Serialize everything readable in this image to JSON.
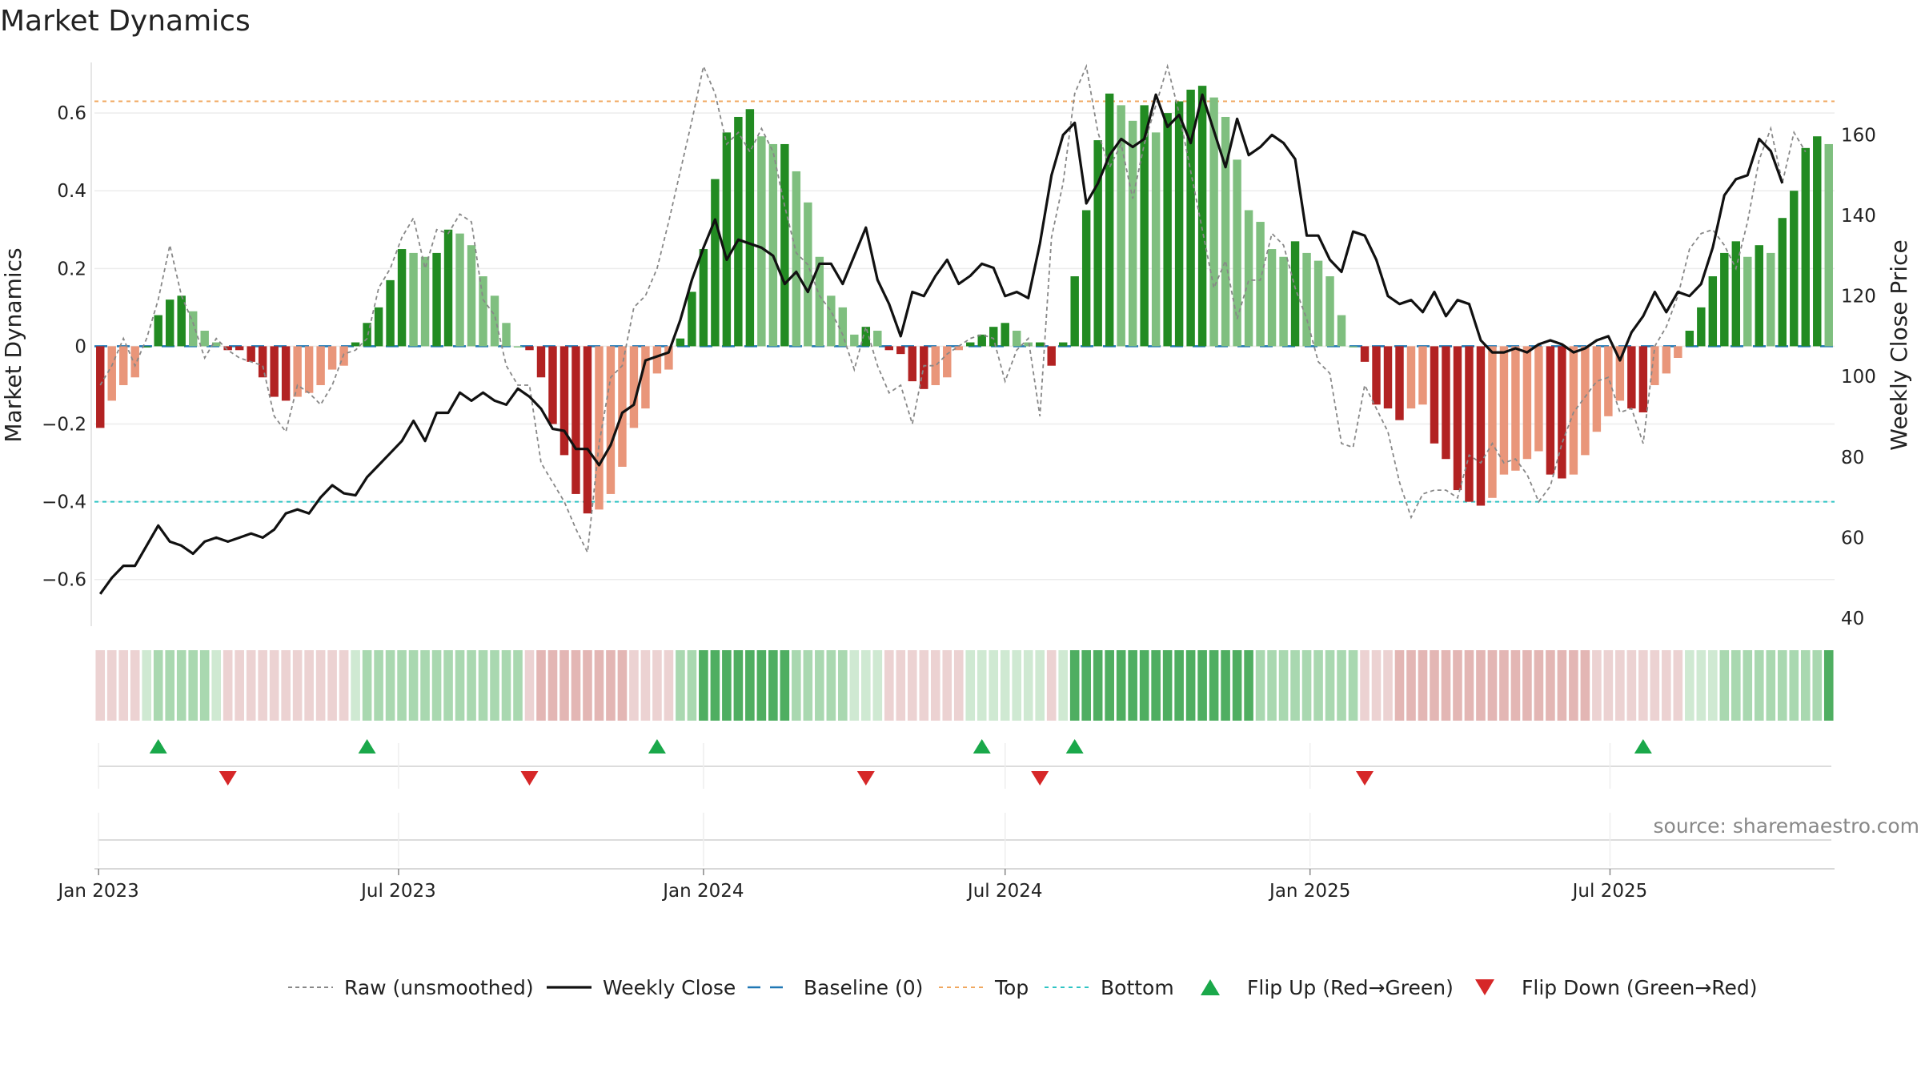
{
  "chart_data": {
    "type": "bar",
    "title": "Market Dynamics",
    "ylabel": "Market Dynamics",
    "y2label": "Weekly Close Price",
    "ylim": [
      -0.72,
      0.73
    ],
    "y2lim": [
      38,
      178
    ],
    "yticks": [
      "0.6",
      "0.4",
      "0.2",
      "0",
      "−0.2",
      "−0.4",
      "−0.6"
    ],
    "y2ticks": [
      "160",
      "140",
      "120",
      "100",
      "80",
      "60",
      "40"
    ],
    "xticks": [
      "Jan 2023",
      "Jul 2023",
      "Jan 2024",
      "Jul 2024",
      "Jan 2025",
      "Jul 2025"
    ],
    "top_level": 0.63,
    "bottom_level": -0.4,
    "baseline": 0,
    "grid": true,
    "legend_position": "bottom-center",
    "colors": {
      "strong_green": "#228b22",
      "light_green": "#7fbf7f",
      "strong_red": "#b22222",
      "light_red": "#e9967a",
      "top_line": "#f0a860",
      "bottom_line": "#2ec4c4",
      "baseline": "#1f77b4",
      "raw": "#888888",
      "close": "#111111",
      "flip_up": "#1aa84a",
      "flip_down": "#d62728"
    },
    "series": [
      {
        "name": "Market Dynamics",
        "values": [
          -0.21,
          -0.14,
          -0.1,
          -0.08,
          0,
          0.08,
          0.12,
          0.13,
          0.09,
          0.04,
          0.01,
          -0.01,
          -0.01,
          -0.04,
          -0.08,
          -0.13,
          -0.14,
          -0.13,
          -0.12,
          -0.1,
          -0.06,
          -0.05,
          0.01,
          0.06,
          0.1,
          0.17,
          0.25,
          0.24,
          0.23,
          0.24,
          0.3,
          0.29,
          0.26,
          0.18,
          0.13,
          0.06,
          0,
          -0.01,
          -0.08,
          -0.2,
          -0.28,
          -0.38,
          -0.43,
          -0.42,
          -0.38,
          -0.31,
          -0.21,
          -0.16,
          -0.07,
          -0.06,
          0.02,
          0.14,
          0.25,
          0.43,
          0.55,
          0.59,
          0.61,
          0.54,
          0.52,
          0.52,
          0.45,
          0.37,
          0.23,
          0.13,
          0.1,
          0.03,
          0.05,
          0.04,
          -0.01,
          -0.02,
          -0.09,
          -0.11,
          -0.1,
          -0.08,
          -0.01,
          0.01,
          0.03,
          0.05,
          0.06,
          0.04,
          0.01,
          0.01,
          -0.05,
          0.01,
          0.18,
          0.35,
          0.53,
          0.65,
          0.62,
          0.58,
          0.62,
          0.55,
          0.6,
          0.63,
          0.66,
          0.67,
          0.64,
          0.59,
          0.48,
          0.35,
          0.32,
          0.25,
          0.23,
          0.27,
          0.24,
          0.22,
          0.18,
          0.08,
          0,
          -0.04,
          -0.15,
          -0.16,
          -0.19,
          -0.16,
          -0.15,
          -0.25,
          -0.29,
          -0.37,
          -0.4,
          -0.41,
          -0.39,
          -0.33,
          -0.32,
          -0.29,
          -0.27,
          -0.33,
          -0.34,
          -0.33,
          -0.28,
          -0.22,
          -0.18,
          -0.14,
          -0.16,
          -0.17,
          -0.1,
          -0.07,
          -0.03,
          0.04,
          0.1,
          0.18,
          0.24,
          0.27,
          0.23,
          0.26,
          0.24,
          0.33,
          0.4,
          0.51,
          0.54,
          0.52
        ]
      },
      {
        "name": "Raw (unsmoothed)",
        "values": [
          -0.1,
          -0.05,
          0.02,
          -0.05,
          0.02,
          0.12,
          0.26,
          0.13,
          0.06,
          -0.03,
          0.02,
          -0.01,
          -0.03,
          -0.04,
          -0.05,
          -0.18,
          -0.22,
          -0.1,
          -0.12,
          -0.15,
          -0.1,
          -0.02,
          -0.01,
          0.02,
          0.15,
          0.2,
          0.28,
          0.33,
          0.2,
          0.3,
          0.29,
          0.34,
          0.32,
          0.12,
          0.08,
          -0.05,
          -0.1,
          -0.1,
          -0.3,
          -0.35,
          -0.4,
          -0.47,
          -0.53,
          -0.25,
          -0.08,
          -0.05,
          0.1,
          0.13,
          0.2,
          0.32,
          0.45,
          0.58,
          0.72,
          0.65,
          0.52,
          0.55,
          0.5,
          0.56,
          0.5,
          0.36,
          0.24,
          0.21,
          0.13,
          0.09,
          0.03,
          -0.06,
          0.05,
          -0.05,
          -0.12,
          -0.1,
          -0.2,
          -0.05,
          -0.05,
          -0.02,
          0,
          0.02,
          0.03,
          0.02,
          -0.09,
          -0.01,
          0.02,
          -0.18,
          0.28,
          0.42,
          0.65,
          0.72,
          0.55,
          0.46,
          0.52,
          0.38,
          0.52,
          0.62,
          0.72,
          0.6,
          0.45,
          0.3,
          0.15,
          0.22,
          0.07,
          0.17,
          0.17,
          0.29,
          0.26,
          0.15,
          0.07,
          -0.04,
          -0.07,
          -0.25,
          -0.26,
          -0.1,
          -0.16,
          -0.22,
          -0.35,
          -0.44,
          -0.38,
          -0.37,
          -0.37,
          -0.39,
          -0.28,
          -0.3,
          -0.25,
          -0.3,
          -0.29,
          -0.33,
          -0.4,
          -0.36,
          -0.25,
          -0.17,
          -0.13,
          -0.09,
          -0.08,
          -0.17,
          -0.16,
          -0.25,
          0,
          0.05,
          0.13,
          0.25,
          0.29,
          0.3,
          0.26,
          0.2,
          0.32,
          0.48,
          0.56,
          0.42,
          0.55,
          0.5
        ]
      },
      {
        "name": "Weekly Close",
        "values": [
          46,
          50,
          53,
          53,
          58,
          63,
          59,
          58,
          56,
          59,
          60,
          59,
          60,
          61,
          60,
          62,
          66,
          67,
          66,
          70,
          73,
          71,
          70.5,
          75,
          78,
          81,
          84,
          89,
          84,
          91,
          91,
          96,
          94,
          96,
          94,
          93,
          97,
          95,
          92,
          87,
          86.5,
          82,
          82,
          78,
          83,
          91,
          93,
          104,
          105,
          106,
          114,
          124,
          132,
          139,
          129,
          134,
          133,
          132,
          130,
          123,
          126,
          121,
          128,
          128,
          123,
          130,
          137,
          124,
          118,
          110,
          121,
          120,
          125,
          129,
          123,
          125,
          128,
          127,
          120,
          121,
          119.5,
          133,
          150,
          160,
          163,
          143,
          148,
          155,
          159,
          157,
          159,
          170,
          162,
          165,
          158,
          170,
          161,
          152,
          164,
          155,
          157,
          160,
          158,
          154,
          135,
          135,
          129,
          126,
          136,
          135,
          129,
          120,
          118,
          119,
          116,
          121,
          115,
          119,
          118,
          109,
          106,
          106,
          107,
          106,
          108,
          109,
          108,
          106,
          107,
          109,
          110,
          104,
          111,
          115,
          121,
          116,
          121,
          120,
          123,
          132,
          145,
          149,
          150,
          159,
          156,
          148
        ]
      }
    ],
    "phase_strip": {
      "name": "Phase",
      "levels": [
        1,
        1,
        1,
        1,
        1,
        2,
        2,
        2,
        2,
        2,
        1,
        1,
        1,
        1,
        1,
        1,
        1,
        1,
        1,
        1,
        1,
        1,
        1,
        2,
        2,
        2,
        2,
        2,
        2,
        2,
        2,
        2,
        2,
        2,
        2,
        2,
        2,
        1,
        2,
        2,
        2,
        2,
        2,
        2,
        2,
        2,
        1,
        1,
        1,
        1,
        2,
        2,
        3,
        3,
        3,
        3,
        3,
        3,
        3,
        3,
        2,
        2,
        2,
        2,
        2,
        1,
        1,
        1,
        1,
        1,
        1,
        1,
        1,
        1,
        1,
        1,
        1,
        1,
        1,
        1,
        1,
        1,
        1,
        1,
        3,
        3,
        3,
        3,
        3,
        3,
        3,
        3,
        3,
        3,
        3,
        3,
        3,
        3,
        3,
        3,
        2,
        2,
        2,
        2,
        2,
        2,
        2,
        2,
        2,
        1,
        1,
        1,
        2,
        2,
        2,
        2,
        2,
        2,
        2,
        2,
        2,
        2,
        2,
        2,
        2,
        2,
        2,
        2,
        2,
        1,
        1,
        1,
        1,
        1,
        1,
        1,
        1,
        1,
        1,
        1,
        2,
        2,
        2,
        2,
        2,
        2,
        2,
        2,
        2,
        3,
        3
      ]
    },
    "flip_up_indices": [
      5,
      23,
      48,
      76,
      84,
      133
    ],
    "flip_down_indices": [
      11,
      37,
      66,
      81,
      109
    ],
    "legend": [
      "Raw (unsmoothed)",
      "Weekly Close",
      "Baseline (0)",
      "Top",
      "Bottom",
      "Flip Up (Red→Green)",
      "Flip Down (Green→Red)"
    ],
    "source": "source: sharemaestro.com"
  }
}
